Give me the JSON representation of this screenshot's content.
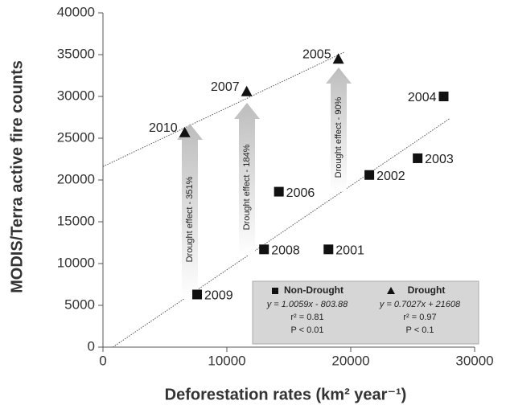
{
  "chart_data": {
    "type": "scatter",
    "x_label": "Deforestation rates (km² year⁻¹)",
    "y_label": "MODIS/Terra active fire counts",
    "xlim": [
      0,
      30000
    ],
    "ylim": [
      0,
      40000
    ],
    "xticks": [
      0,
      10000,
      20000,
      30000
    ],
    "yticks": [
      0,
      5000,
      10000,
      15000,
      20000,
      25000,
      30000,
      35000,
      40000
    ],
    "series": [
      {
        "name": "Non-Drought",
        "marker": "square",
        "color": "#111111",
        "x": [
          18200,
          21500,
          25400,
          27500,
          14200,
          13000,
          7600
        ],
        "values": [
          11700,
          20600,
          22600,
          30000,
          18600,
          11700,
          6300
        ],
        "point_labels": [
          "2001",
          "2002",
          "2003",
          "2004",
          "2006",
          "2008",
          "2009"
        ],
        "fit": {
          "slope": 1.0059,
          "intercept": -803.88,
          "equation": "y = 1.0059x - 803.88",
          "r2": "r² = 0.81",
          "p": "P < 0.01"
        }
      },
      {
        "name": "Drought",
        "marker": "triangle",
        "color": "#111111",
        "x": [
          19000,
          11600,
          6600
        ],
        "values": [
          34400,
          30500,
          25600
        ],
        "point_labels": [
          "2005",
          "2007",
          "2010"
        ],
        "fit": {
          "slope": 0.7027,
          "intercept": 21608,
          "equation": "y = 0.7027x + 21608",
          "r2": "r² = 0.97",
          "p": "P < 0.1"
        }
      }
    ],
    "annotations": [
      "Drought effect - 351%",
      "Drought effect - 184%",
      "Drought effect - 90%"
    ]
  }
}
